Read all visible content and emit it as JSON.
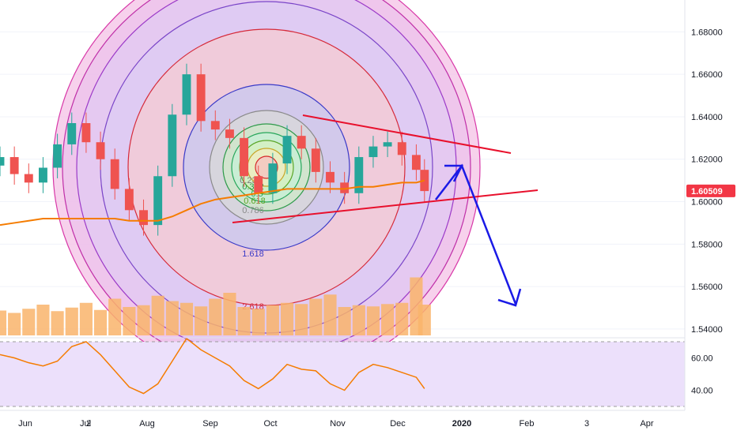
{
  "symbol_last_price": "1.60509",
  "price_axis": {
    "ticks": [
      "1.68000",
      "1.66000",
      "1.64000",
      "1.62000",
      "1.60000",
      "1.58000",
      "1.56000",
      "1.54000"
    ]
  },
  "rsi_axis": {
    "ticks": [
      "60.00",
      "40.00"
    ]
  },
  "time_axis": {
    "labels": [
      "Jun",
      "Jul",
      "2",
      "Aug",
      "Sep",
      "Oct",
      "Nov",
      "Dec",
      "2020",
      "Feb",
      "3",
      "Apr"
    ]
  },
  "fib_labels": [
    "0.236",
    "0.382",
    "0.5",
    "0.618",
    "0.786",
    "1.618",
    "2.618"
  ],
  "colors": {
    "bull": "#26a69a",
    "bear": "#ef5350",
    "ma": "#f57c00",
    "rsi": "#f57c00",
    "volume": "#f9b46b",
    "arrow": "#1a1ae6",
    "trendline": "#e8102c",
    "price_badge": "#f23645",
    "rsi_band": "#ece0fb"
  },
  "chart_data": [
    {
      "type": "line",
      "title": "",
      "x": [
        "2019-05-27",
        "2019-06-03",
        "2019-06-10",
        "2019-06-17",
        "2019-06-24",
        "2019-07-01",
        "2019-07-08",
        "2019-07-15",
        "2019-07-22",
        "2019-07-29",
        "2019-08-05",
        "2019-08-12",
        "2019-08-19",
        "2019-08-26",
        "2019-09-02",
        "2019-09-09",
        "2019-09-16",
        "2019-09-23",
        "2019-09-30",
        "2019-10-07",
        "2019-10-14",
        "2019-10-21",
        "2019-10-28",
        "2019-11-04",
        "2019-11-11",
        "2019-11-18",
        "2019-11-25",
        "2019-12-02",
        "2019-12-09",
        "2019-12-16",
        "2019-12-20"
      ],
      "series": [
        {
          "values": [
            1.621,
            1.613,
            1.609,
            1.616,
            1.627,
            1.637,
            1.628,
            1.62,
            1.606,
            1.596,
            1.589,
            1.612,
            1.641,
            1.66,
            1.638,
            1.634,
            1.63,
            1.612,
            1.604,
            1.618,
            1.631,
            1.625,
            1.614,
            1.609,
            1.604,
            1.621,
            1.626,
            1.628,
            1.622,
            1.615,
            1.605
          ]
        },
        {
          "values": [
            1.589,
            1.59,
            1.591,
            1.592,
            1.592,
            1.592,
            1.592,
            1.592,
            1.592,
            1.591,
            1.591,
            1.591,
            1.593,
            1.596,
            1.599,
            1.601,
            1.602,
            1.603,
            1.604,
            1.605,
            1.606,
            1.606,
            1.606,
            1.606,
            1.606,
            1.607,
            1.607,
            1.608,
            1.609,
            1.609,
            1.61
          ]
        }
      ],
      "ylim": [
        1.537,
        1.695
      ],
      "xlim": [
        "2019-05-27",
        "2020-04-13"
      ],
      "grid": true
    },
    {
      "type": "bar",
      "title": "",
      "values": [
        0.42,
        0.38,
        0.45,
        0.52,
        0.41,
        0.47,
        0.55,
        0.43,
        0.62,
        0.48,
        0.51,
        0.67,
        0.58,
        0.55,
        0.49,
        0.62,
        0.72,
        0.48,
        0.45,
        0.51,
        0.55,
        0.53,
        0.62,
        0.69,
        0.48,
        0.51,
        0.49,
        0.53,
        0.55,
        0.98,
        0.52
      ],
      "grid": false
    },
    {
      "type": "line",
      "title": "",
      "values": [
        62,
        60,
        57,
        55,
        58,
        67,
        70,
        62,
        52,
        42,
        38,
        44,
        58,
        72,
        65,
        60,
        55,
        46,
        41,
        47,
        56,
        53,
        52,
        44,
        40,
        51,
        56,
        54,
        51,
        48,
        41
      ],
      "ylim": [
        30,
        70
      ],
      "grid": true
    }
  ]
}
